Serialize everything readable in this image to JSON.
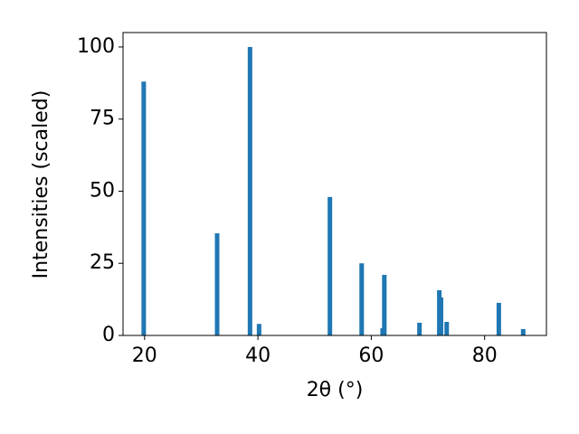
{
  "chart_data": {
    "type": "bar",
    "x_label": "2θ (°)",
    "y_label": "Intensities (scaled)",
    "x": [
      19.85,
      32.8,
      38.6,
      40.2,
      52.7,
      58.3,
      62.0,
      62.3,
      68.5,
      72.0,
      72.3,
      73.3,
      82.5,
      86.8
    ],
    "values": [
      88,
      35.4,
      100,
      4,
      48,
      25,
      2.5,
      21,
      4.4,
      15.7,
      13.2,
      4.7,
      11.3,
      2.2
    ],
    "color": "#1f77b4",
    "xlim": [
      16.2,
      90.9
    ],
    "ylim": [
      0,
      105
    ],
    "xticks": [
      20,
      40,
      60,
      80
    ],
    "yticks": [
      0,
      25,
      50,
      75,
      100
    ]
  }
}
